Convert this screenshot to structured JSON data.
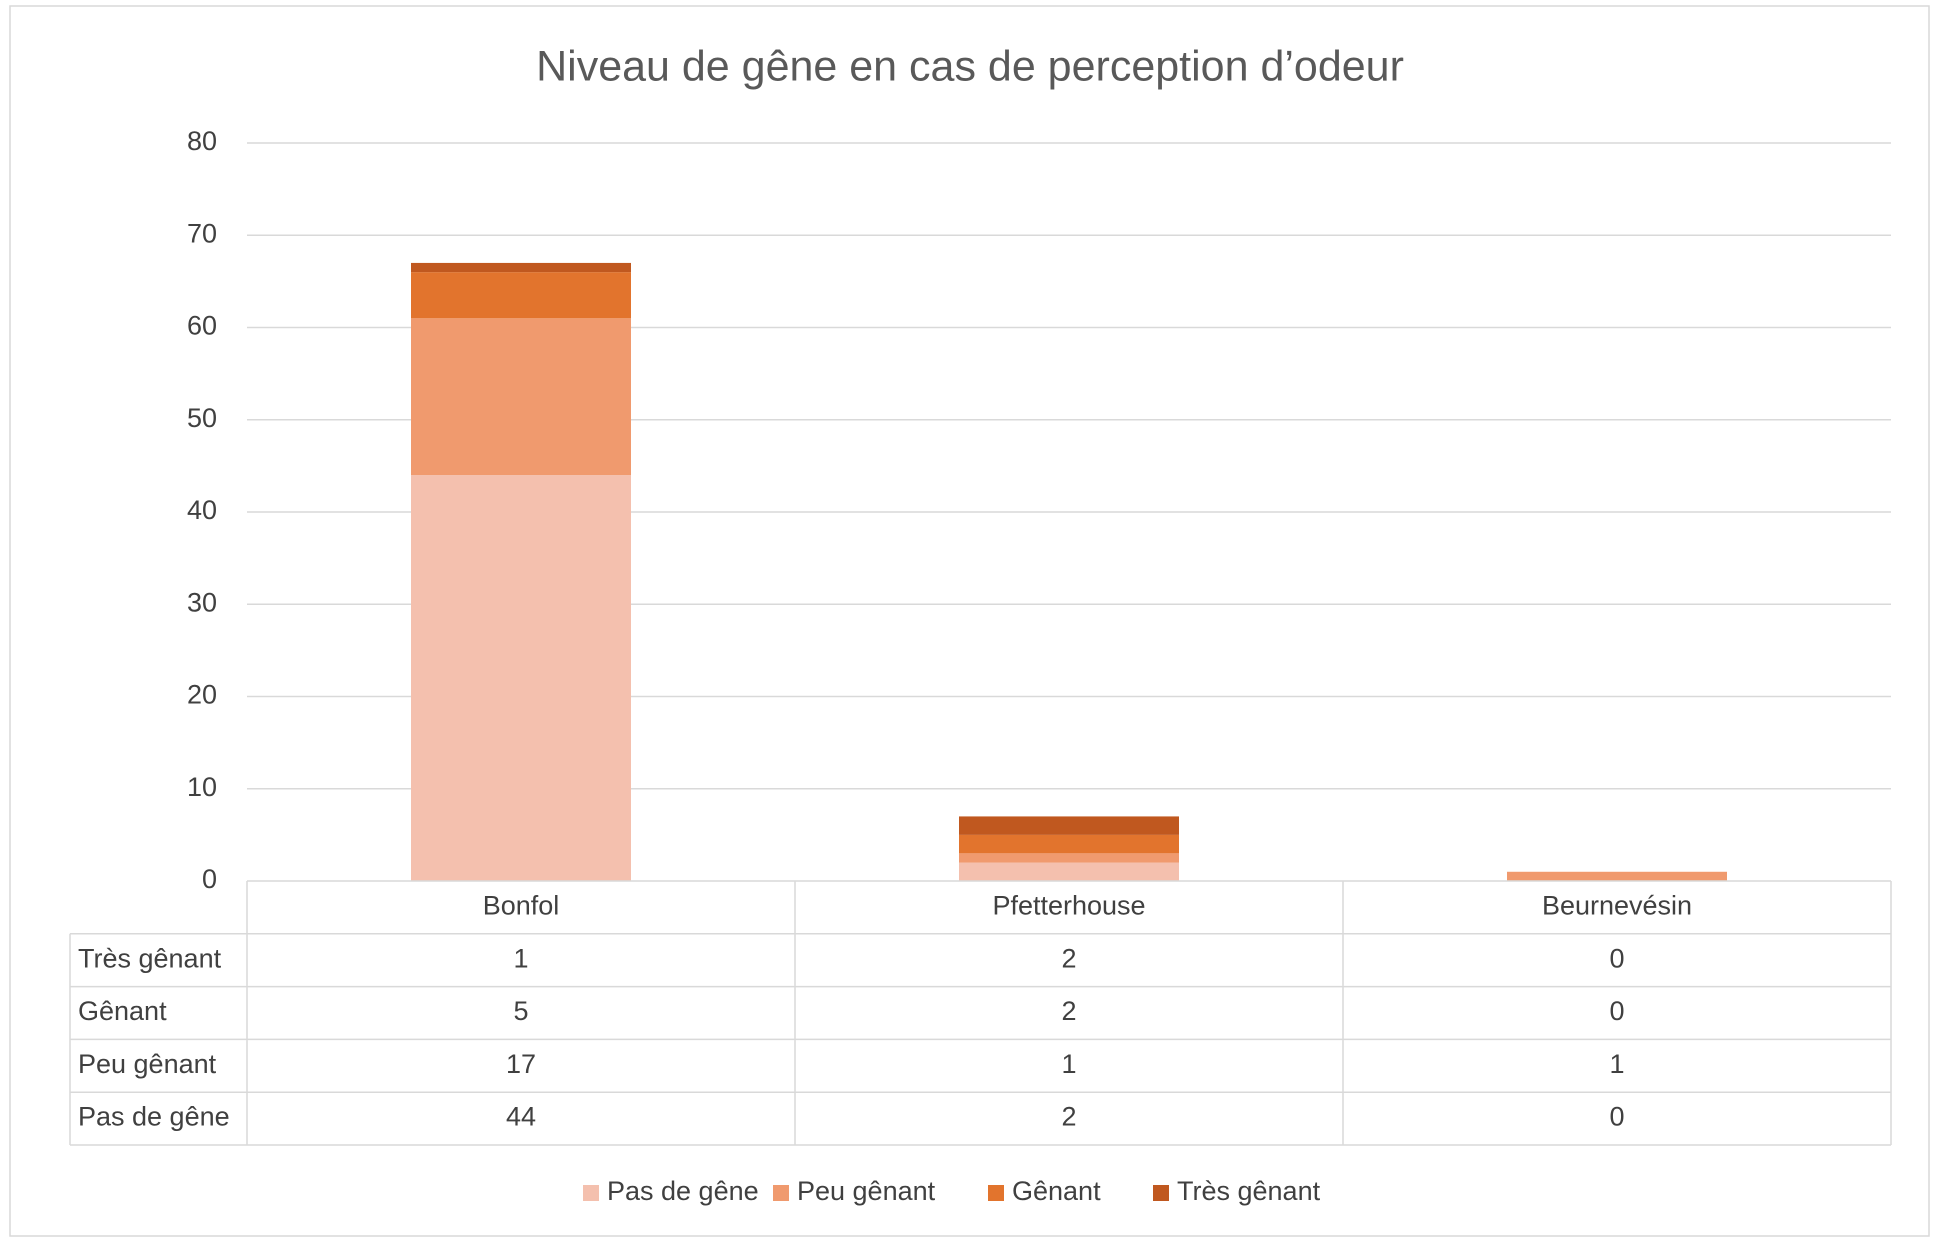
{
  "chart_data": {
    "type": "bar",
    "stacked": true,
    "title": "Niveau de gêne en cas de perception d’odeur",
    "categories": [
      "Bonfol",
      "Pfetterhouse",
      "Beurnevésin"
    ],
    "series": [
      {
        "name": "Pas de gêne",
        "color": "#f4c0ae",
        "values": [
          44,
          2,
          0
        ]
      },
      {
        "name": "Peu gênant",
        "color": "#f09a6e",
        "values": [
          17,
          1,
          1
        ]
      },
      {
        "name": "Gênant",
        "color": "#e2742d",
        "values": [
          5,
          2,
          0
        ]
      },
      {
        "name": "Très gênant",
        "color": "#c0581f",
        "values": [
          1,
          2,
          0
        ]
      }
    ],
    "ylim": [
      0,
      80
    ],
    "yticks": [
      0,
      10,
      20,
      30,
      40,
      50,
      60,
      70,
      80
    ],
    "grid": true,
    "legend": "bottom",
    "data_table": true
  }
}
